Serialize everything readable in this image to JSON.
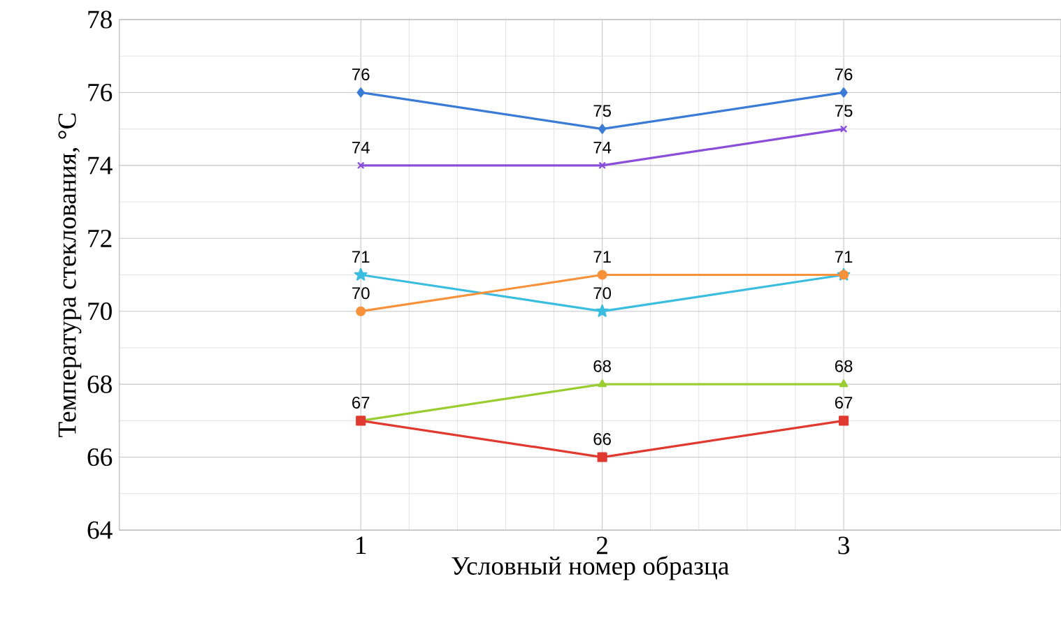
{
  "chart_data": {
    "type": "line",
    "xlabel": "Условный номер образца",
    "ylabel": "Температура стеклования, °С",
    "xlim": [
      0,
      3.9
    ],
    "xticks": [
      1,
      2,
      3
    ],
    "ylim": [
      64,
      78
    ],
    "yticks": [
      64,
      66,
      68,
      70,
      72,
      74,
      76,
      78
    ],
    "grid": true,
    "series": [
      {
        "color": "#3a7bd5",
        "marker": "diamond",
        "x": [
          1,
          2,
          3
        ],
        "values": [
          76,
          75,
          76
        ],
        "value_labels": [
          "76",
          "75",
          "76"
        ]
      },
      {
        "color": "#8a4fd8",
        "marker": "cross",
        "x": [
          1,
          2,
          3
        ],
        "values": [
          74,
          74,
          75
        ],
        "value_labels": [
          "74",
          "74",
          "75"
        ]
      },
      {
        "color": "#3bbde0",
        "marker": "star",
        "x": [
          1,
          2,
          3
        ],
        "values": [
          71,
          70,
          71
        ],
        "value_labels": [
          "71",
          "70",
          "71"
        ]
      },
      {
        "color": "#f7913a",
        "marker": "circle",
        "x": [
          1,
          2,
          3
        ],
        "values": [
          70,
          71,
          71
        ],
        "value_labels": [
          "70",
          "71",
          null
        ]
      },
      {
        "color": "#9acd32",
        "marker": "triangle",
        "x": [
          1,
          2,
          3
        ],
        "values": [
          67,
          68,
          68
        ],
        "value_labels": [
          null,
          "68",
          "68"
        ]
      },
      {
        "color": "#e0392f",
        "marker": "square",
        "x": [
          1,
          2,
          3
        ],
        "values": [
          67,
          66,
          67
        ],
        "value_labels": [
          "67",
          "66",
          "67"
        ]
      }
    ]
  }
}
